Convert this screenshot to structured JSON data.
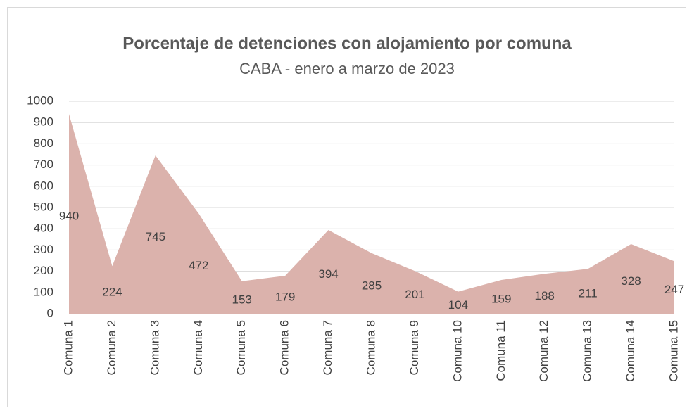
{
  "chart_data": {
    "type": "area",
    "title": "Porcentaje de detenciones con alojamiento por comuna",
    "subtitle": "CABA - enero a marzo de 2023",
    "categories": [
      "Comuna 1",
      "Comuna 2",
      "Comuna 3",
      "Comuna 4",
      "Comuna 5",
      "Comuna 6",
      "Comuna 7",
      "Comuna 8",
      "Comuna 9",
      "Comuna 10",
      "Comuna 11",
      "Comuna 12",
      "Comuna 13",
      "Comuna 14",
      "Comuna 15"
    ],
    "values": [
      940,
      224,
      745,
      472,
      153,
      179,
      394,
      285,
      201,
      104,
      159,
      188,
      211,
      328,
      247
    ],
    "color": "#dbb2ac",
    "ylim": [
      0,
      1000
    ],
    "yticks": [
      0,
      100,
      200,
      300,
      400,
      500,
      600,
      700,
      800,
      900,
      1000
    ],
    "grid": true
  }
}
